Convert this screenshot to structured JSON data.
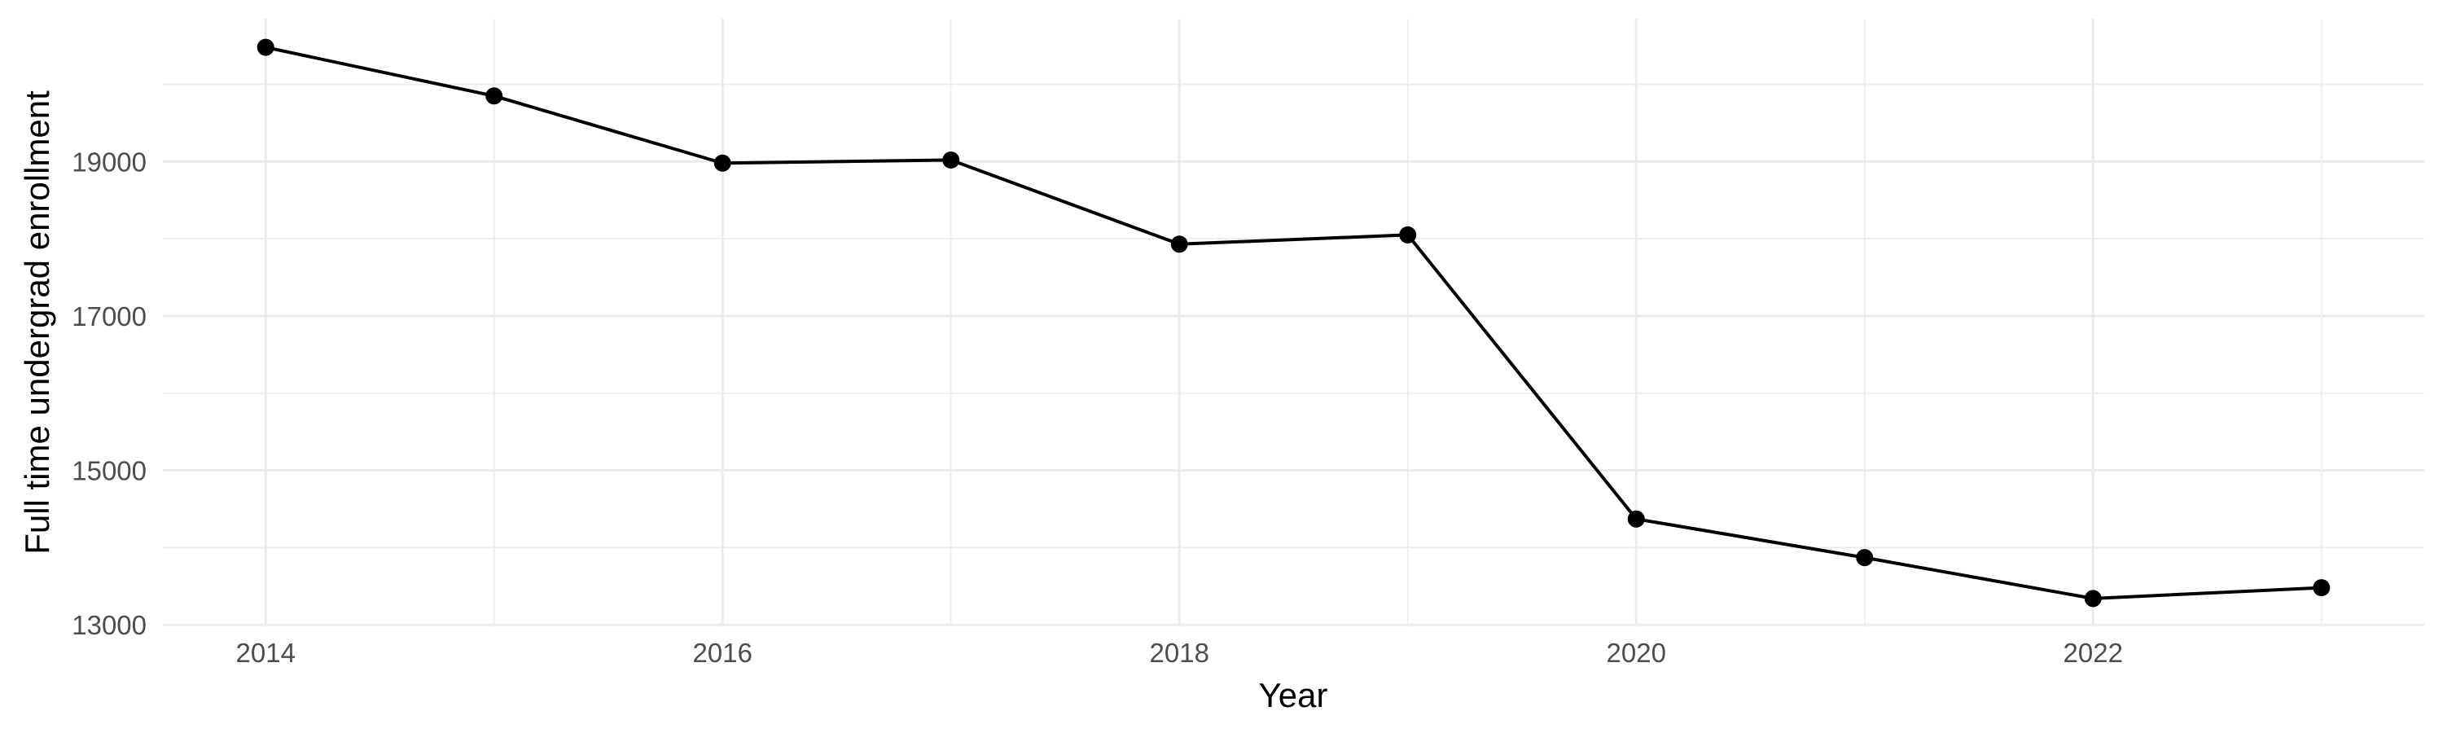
{
  "chart_data": {
    "type": "line",
    "title": "",
    "xlabel": "Year",
    "ylabel": "Full time undergrad enrollment",
    "x": [
      2014,
      2015,
      2016,
      2017,
      2018,
      2019,
      2020,
      2021,
      2022,
      2023
    ],
    "series": [
      {
        "name": "Full time undergrad enrollment",
        "values": [
          20480,
          19850,
          18980,
          19020,
          17930,
          18050,
          14370,
          13870,
          13340,
          13480
        ]
      }
    ],
    "xlim": [
      2013.55,
      2023.45
    ],
    "ylim": [
      12980,
      20850
    ],
    "x_major_ticks": [
      2014,
      2016,
      2018,
      2020,
      2022
    ],
    "x_minor_ticks": [
      2015,
      2017,
      2019,
      2021,
      2023
    ],
    "y_major_ticks": [
      13000,
      15000,
      17000,
      19000
    ],
    "y_minor_ticks": [
      14000,
      16000,
      18000,
      20000
    ],
    "grid": true,
    "legend_position": "none",
    "colors": {
      "line": "#000000",
      "point": "#000000",
      "grid_major": "#ebebeb",
      "grid_minor": "#ececec",
      "tick_label": "#4d4d4d",
      "axis_title": "#000000",
      "background": "#ffffff"
    }
  }
}
